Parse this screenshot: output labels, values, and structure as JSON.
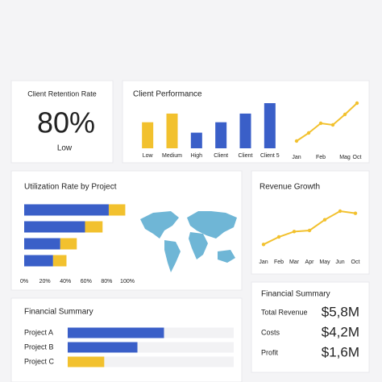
{
  "retention": {
    "title": "Client Retention Rate",
    "value": "80%",
    "note": "Low"
  },
  "chart_data": [
    {
      "type": "bar",
      "title": "Client Performance",
      "categories": [
        "Low",
        "Medium",
        "High",
        "Client",
        "Client",
        "Client 5"
      ],
      "values": [
        30,
        40,
        18,
        30,
        40,
        52
      ],
      "colors": [
        "#f2c12e",
        "#f2c12e",
        "#3a5fc8",
        "#3a5fc8",
        "#3a5fc8",
        "#3a5fc8"
      ]
    },
    {
      "type": "line",
      "categories": [
        "Jan",
        null,
        "Feb",
        null,
        "Mag",
        "Oct"
      ],
      "values": [
        5,
        15,
        27,
        25,
        38,
        52
      ],
      "color": "#f2c12e"
    },
    {
      "type": "hbar_stacked",
      "title": "Utilization Rate by Project",
      "series": [
        {
          "color": "#3a5fc8",
          "values": [
            82,
            59,
            35,
            28
          ]
        },
        {
          "color": "#f2c12e",
          "values": [
            16,
            17,
            16,
            13
          ]
        }
      ],
      "xlim": [
        0,
        100
      ],
      "xticks": [
        {
          "value": 0,
          "label": "0%"
        },
        {
          "value": 20,
          "label": "20%"
        },
        {
          "value": 40,
          "label": "40%"
        },
        {
          "value": 60,
          "label": "60%"
        },
        {
          "value": 80,
          "label": "80%"
        },
        {
          "value": 100,
          "label": "100%"
        }
      ]
    },
    {
      "type": "line",
      "title": "Revenue Growth",
      "categories": [
        "Jan",
        "Feb",
        "Mar",
        "Apr",
        "May",
        "Jun",
        "Oct"
      ],
      "values": [
        5,
        12,
        17,
        18,
        28,
        36,
        34
      ],
      "color": "#f2c12e"
    },
    {
      "type": "hbar",
      "title": "Financial Summary",
      "categories": [
        "Project A",
        "Project B",
        "Project C"
      ],
      "values": [
        58,
        42,
        22
      ],
      "colors": [
        "#3a5fc8",
        "#3a5fc8",
        "#f2c12e"
      ],
      "xlim": [
        0,
        100
      ]
    }
  ],
  "summary": {
    "title": "Financial Summary",
    "rows": [
      [
        "Total Revenue",
        "$5,8M"
      ],
      [
        "Costs",
        "$4,2M"
      ],
      [
        "Profit",
        "$1,6M"
      ]
    ]
  }
}
